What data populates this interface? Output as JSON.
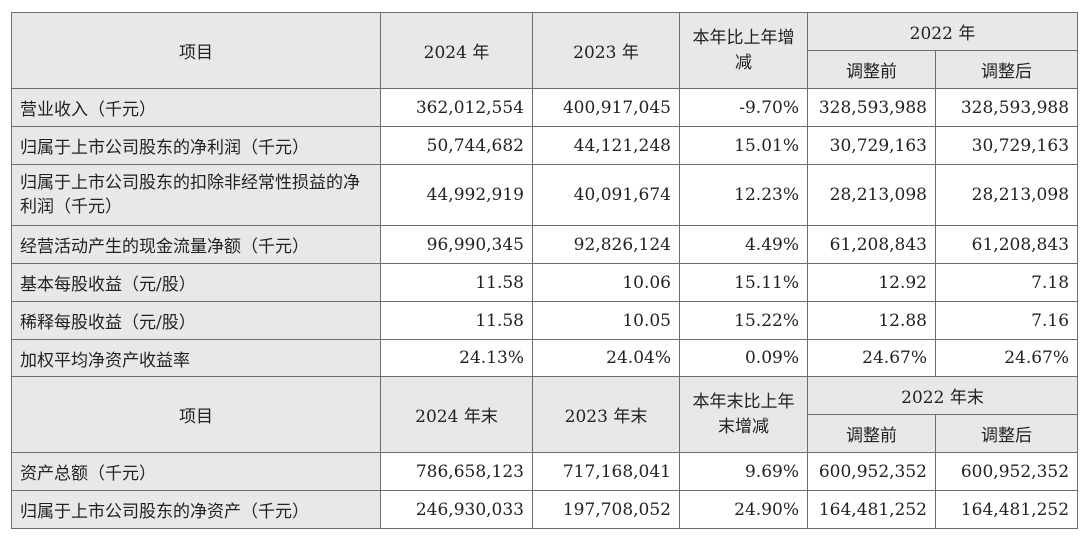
{
  "header1": {
    "item": "项目",
    "col2024": "2024 年",
    "col2023": "2023 年",
    "change": "本年比上年增减",
    "col2022": "2022 年",
    "before": "调整前",
    "after": "调整后"
  },
  "rows1": [
    {
      "label": "营业收入（千元）",
      "v2024": "362,012,554",
      "v2023": "400,917,045",
      "chg": "-9.70%",
      "before": "328,593,988",
      "after": "328,593,988"
    },
    {
      "label": "归属于上市公司股东的净利润（千元）",
      "v2024": "50,744,682",
      "v2023": "44,121,248",
      "chg": "15.01%",
      "before": "30,729,163",
      "after": "30,729,163"
    },
    {
      "label": "归属于上市公司股东的扣除非经常性损益的净利润（千元）",
      "v2024": "44,992,919",
      "v2023": "40,091,674",
      "chg": "12.23%",
      "before": "28,213,098",
      "after": "28,213,098"
    },
    {
      "label": "经营活动产生的现金流量净额（千元）",
      "v2024": "96,990,345",
      "v2023": "92,826,124",
      "chg": "4.49%",
      "before": "61,208,843",
      "after": "61,208,843"
    },
    {
      "label": "基本每股收益（元/股）",
      "v2024": "11.58",
      "v2023": "10.06",
      "chg": "15.11%",
      "before": "12.92",
      "after": "7.18"
    },
    {
      "label": "稀释每股收益（元/股）",
      "v2024": "11.58",
      "v2023": "10.05",
      "chg": "15.22%",
      "before": "12.88",
      "after": "7.16"
    },
    {
      "label": "加权平均净资产收益率",
      "v2024": "24.13%",
      "v2023": "24.04%",
      "chg": "0.09%",
      "before": "24.67%",
      "after": "24.67%"
    }
  ],
  "header2": {
    "item": "项目",
    "col2024": "2024 年末",
    "col2023": "2023 年末",
    "change": "本年末比上年末增减",
    "col2022": "2022 年末",
    "before": "调整前",
    "after": "调整后"
  },
  "rows2": [
    {
      "label": "资产总额（千元）",
      "v2024": "786,658,123",
      "v2023": "717,168,041",
      "chg": "9.69%",
      "before": "600,952,352",
      "after": "600,952,352"
    },
    {
      "label": "归属于上市公司股东的净资产（千元）",
      "v2024": "246,930,033",
      "v2023": "197,708,052",
      "chg": "24.90%",
      "before": "164,481,252",
      "after": "164,481,252"
    }
  ]
}
